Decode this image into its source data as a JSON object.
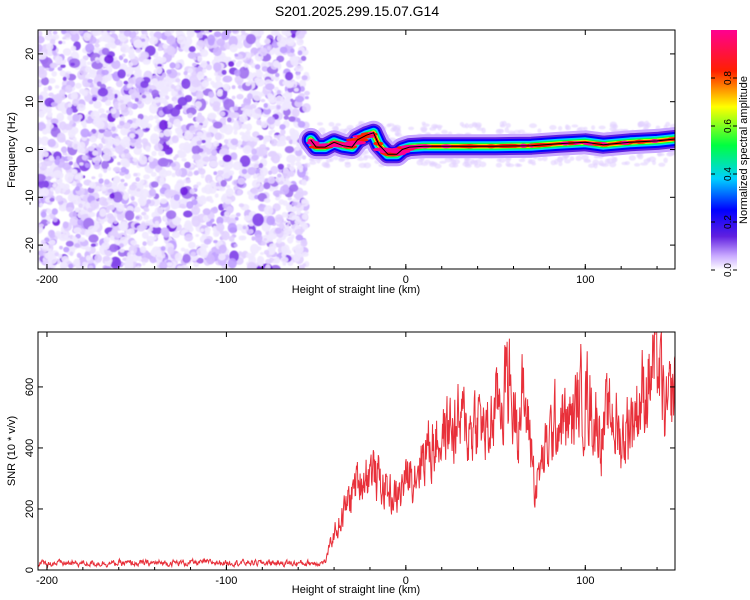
{
  "title": "S201.2025.299.15.07.G14",
  "chart_data": [
    {
      "type": "heatmap",
      "xlabel": "Height of straight line (km)",
      "ylabel": "Frequency (Hz)",
      "xlim": [
        -205,
        150
      ],
      "ylim": [
        -25,
        25
      ],
      "xticks": [
        -200,
        -100,
        0,
        100
      ],
      "yticks": [
        -20,
        -10,
        0,
        10,
        20
      ],
      "colorbar": {
        "label": "Normalized spectral amplitude",
        "range": [
          0,
          1
        ],
        "ticks": [
          0,
          0.2,
          0.4,
          0.6,
          0.8
        ],
        "tick_labels": [
          "0.0",
          "0.2",
          "0.4",
          "0.6",
          "0.8"
        ],
        "colors": [
          "#ffffff",
          "#c8a8ff",
          "#6020e0",
          "#0000ff",
          "#00d0ff",
          "#00ff40",
          "#ffff00",
          "#ff2000",
          "#ff0090"
        ]
      },
      "noise_region_x": [
        -205,
        -55
      ],
      "signal_ridge": [
        {
          "x": -53,
          "f": 2
        },
        {
          "x": -50,
          "f": 0.5
        },
        {
          "x": -45,
          "f": 0.5
        },
        {
          "x": -40,
          "f": 1.5
        },
        {
          "x": -35,
          "f": 0.8
        },
        {
          "x": -30,
          "f": 0.5
        },
        {
          "x": -27,
          "f": 2
        },
        {
          "x": -22,
          "f": 3
        },
        {
          "x": -18,
          "f": 3.5
        },
        {
          "x": -15,
          "f": 1
        },
        {
          "x": -10,
          "f": -1
        },
        {
          "x": -5,
          "f": -1
        },
        {
          "x": -2,
          "f": 0
        },
        {
          "x": 2,
          "f": 0.5
        },
        {
          "x": 10,
          "f": 0.7
        },
        {
          "x": 30,
          "f": 0.7
        },
        {
          "x": 50,
          "f": 0.7
        },
        {
          "x": 70,
          "f": 0.8
        },
        {
          "x": 85,
          "f": 1.2
        },
        {
          "x": 100,
          "f": 1.5
        },
        {
          "x": 110,
          "f": 1
        },
        {
          "x": 125,
          "f": 1.5
        },
        {
          "x": 140,
          "f": 1.8
        },
        {
          "x": 150,
          "f": 2.2
        }
      ]
    },
    {
      "type": "line",
      "xlabel": "Height of straight line (km)",
      "ylabel": "SNR (10 * v/v)",
      "xlim": [
        -205,
        150
      ],
      "ylim": [
        0,
        780
      ],
      "xticks": [
        -200,
        -100,
        0,
        100
      ],
      "yticks": [
        0,
        200,
        400,
        600
      ],
      "color": "#e8303a",
      "series_envelope": {
        "x": [
          -205,
          -150,
          -100,
          -55,
          -45,
          -40,
          -35,
          -30,
          -25,
          -20,
          -10,
          -5,
          0,
          5,
          10,
          15,
          20,
          25,
          30,
          35,
          40,
          45,
          50,
          55,
          57,
          60,
          65,
          70,
          72,
          75,
          80,
          85,
          90,
          95,
          100,
          105,
          110,
          115,
          120,
          125,
          130,
          135,
          140,
          145,
          150
        ],
        "y": [
          22,
          22,
          25,
          22,
          25,
          120,
          180,
          260,
          300,
          330,
          260,
          230,
          300,
          330,
          390,
          420,
          440,
          470,
          480,
          460,
          500,
          440,
          520,
          600,
          650,
          520,
          560,
          420,
          260,
          330,
          420,
          500,
          470,
          520,
          600,
          500,
          450,
          520,
          420,
          500,
          550,
          620,
          700,
          480,
          600
        ]
      }
    }
  ]
}
